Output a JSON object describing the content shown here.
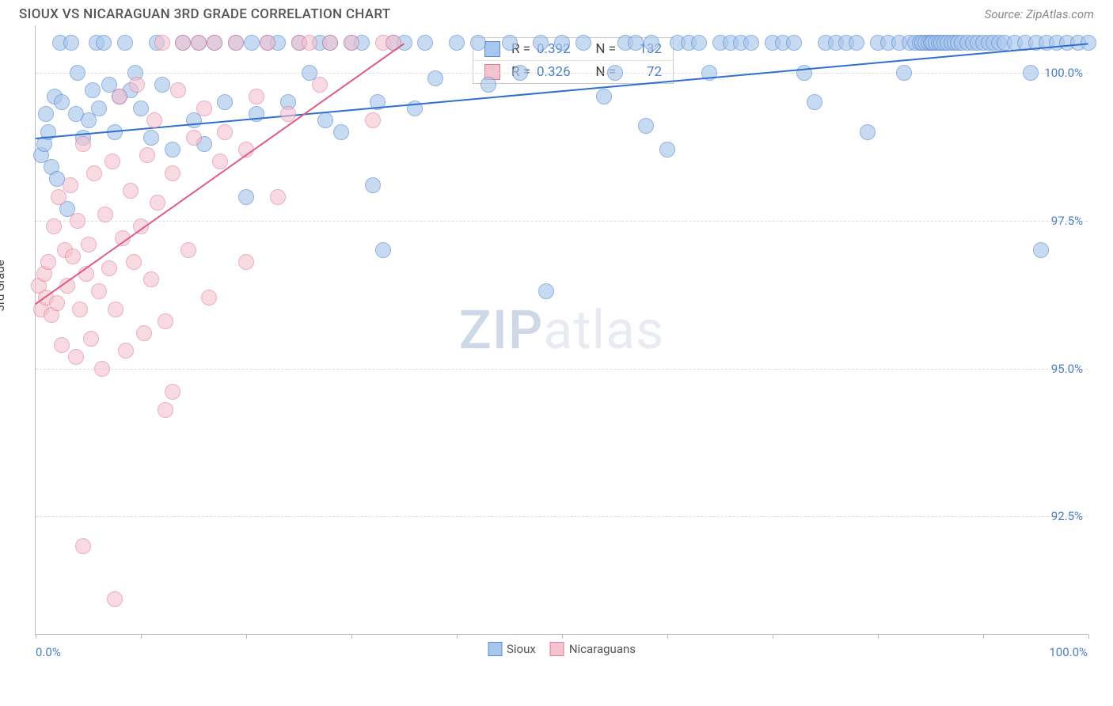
{
  "header": {
    "title": "SIOUX VS NICARAGUAN 3RD GRADE CORRELATION CHART",
    "source": "Source: ZipAtlas.com"
  },
  "chart": {
    "type": "scatter",
    "ylabel": "3rd Grade",
    "xlim": [
      0,
      100
    ],
    "ylim": [
      90.5,
      100.8
    ],
    "y_gridlines": [
      92.5,
      95.0,
      97.5,
      100.0
    ],
    "y_tick_labels": [
      "92.5%",
      "95.0%",
      "97.5%",
      "100.0%"
    ],
    "x_ticks": [
      0,
      10,
      20,
      30,
      40,
      50,
      60,
      70,
      80,
      90,
      100
    ],
    "x_tick_labels_left": "0.0%",
    "x_tick_labels_right": "100.0%",
    "grid_color": "#dddddd",
    "axis_color": "#bbbbbb",
    "background_color": "#ffffff",
    "series": [
      {
        "name": "Sioux",
        "label": "Sioux",
        "point_fill": "#a9c7ec",
        "point_stroke": "#5a8bd0",
        "point_radius": 10,
        "point_opacity": 0.65,
        "trend": {
          "x1": 0,
          "y1": 98.9,
          "x2": 100,
          "y2": 100.5,
          "color": "#2f6fd0",
          "width": 2
        },
        "points": [
          [
            0.5,
            98.6
          ],
          [
            0.8,
            98.8
          ],
          [
            1,
            99.3
          ],
          [
            1.2,
            99.0
          ],
          [
            1.5,
            98.4
          ],
          [
            1.8,
            99.6
          ],
          [
            2,
            98.2
          ],
          [
            2.3,
            100.5
          ],
          [
            2.5,
            99.5
          ],
          [
            3,
            97.7
          ],
          [
            3.4,
            100.5
          ],
          [
            3.8,
            99.3
          ],
          [
            4,
            100.0
          ],
          [
            4.5,
            98.9
          ],
          [
            5,
            99.2
          ],
          [
            5.4,
            99.7
          ],
          [
            5.8,
            100.5
          ],
          [
            6,
            99.4
          ],
          [
            6.5,
            100.5
          ],
          [
            7,
            99.8
          ],
          [
            7.5,
            99.0
          ],
          [
            8,
            99.6
          ],
          [
            8.5,
            100.5
          ],
          [
            9,
            99.7
          ],
          [
            9.5,
            100.0
          ],
          [
            10,
            99.4
          ],
          [
            11,
            98.9
          ],
          [
            11.5,
            100.5
          ],
          [
            12,
            99.8
          ],
          [
            13,
            98.7
          ],
          [
            14,
            100.5
          ],
          [
            15,
            99.2
          ],
          [
            15.5,
            100.5
          ],
          [
            16,
            98.8
          ],
          [
            17,
            100.5
          ],
          [
            18,
            99.5
          ],
          [
            19,
            100.5
          ],
          [
            20,
            97.9
          ],
          [
            20.5,
            100.5
          ],
          [
            21,
            99.3
          ],
          [
            22,
            100.5
          ],
          [
            23,
            100.5
          ],
          [
            24,
            99.5
          ],
          [
            25,
            100.5
          ],
          [
            26,
            100.0
          ],
          [
            27,
            100.5
          ],
          [
            27.5,
            99.2
          ],
          [
            28,
            100.5
          ],
          [
            29,
            99.0
          ],
          [
            30,
            100.5
          ],
          [
            31,
            100.5
          ],
          [
            32,
            98.1
          ],
          [
            32.5,
            99.5
          ],
          [
            33,
            97.0
          ],
          [
            34,
            100.5
          ],
          [
            35,
            100.5
          ],
          [
            36,
            99.4
          ],
          [
            37,
            100.5
          ],
          [
            38,
            99.9
          ],
          [
            40,
            100.5
          ],
          [
            42,
            100.5
          ],
          [
            43,
            99.8
          ],
          [
            45,
            100.5
          ],
          [
            46,
            100.0
          ],
          [
            48,
            100.5
          ],
          [
            48.5,
            96.3
          ],
          [
            50,
            100.5
          ],
          [
            52,
            100.5
          ],
          [
            54,
            99.6
          ],
          [
            56,
            100.5
          ],
          [
            55,
            100.0
          ],
          [
            57,
            100.5
          ],
          [
            58,
            99.1
          ],
          [
            58.5,
            100.5
          ],
          [
            60,
            98.7
          ],
          [
            61,
            100.5
          ],
          [
            62,
            100.5
          ],
          [
            63,
            100.5
          ],
          [
            64,
            100.0
          ],
          [
            65,
            100.5
          ],
          [
            66,
            100.5
          ],
          [
            67,
            100.5
          ],
          [
            68,
            100.5
          ],
          [
            70,
            100.5
          ],
          [
            71,
            100.5
          ],
          [
            72,
            100.5
          ],
          [
            73,
            100.0
          ],
          [
            74,
            99.5
          ],
          [
            75,
            100.5
          ],
          [
            76,
            100.5
          ],
          [
            77,
            100.5
          ],
          [
            78,
            100.5
          ],
          [
            79,
            99.0
          ],
          [
            80,
            100.5
          ],
          [
            81,
            100.5
          ],
          [
            82,
            100.5
          ],
          [
            82.5,
            100.0
          ],
          [
            83,
            100.5
          ],
          [
            83.5,
            100.5
          ],
          [
            84,
            100.5
          ],
          [
            84.2,
            100.5
          ],
          [
            84.5,
            100.5
          ],
          [
            84.8,
            100.5
          ],
          [
            85,
            100.5
          ],
          [
            85.2,
            100.5
          ],
          [
            85.5,
            100.5
          ],
          [
            85.8,
            100.5
          ],
          [
            86,
            100.5
          ],
          [
            86.3,
            100.5
          ],
          [
            86.6,
            100.5
          ],
          [
            87,
            100.5
          ],
          [
            87.3,
            100.5
          ],
          [
            87.6,
            100.5
          ],
          [
            88,
            100.5
          ],
          [
            88.5,
            100.5
          ],
          [
            89,
            100.5
          ],
          [
            89.5,
            100.5
          ],
          [
            90,
            100.5
          ],
          [
            90.5,
            100.5
          ],
          [
            91,
            100.5
          ],
          [
            91.5,
            100.5
          ],
          [
            92,
            100.5
          ],
          [
            93,
            100.5
          ],
          [
            94,
            100.5
          ],
          [
            94.5,
            100.0
          ],
          [
            95,
            100.5
          ],
          [
            95.5,
            97.0
          ],
          [
            96,
            100.5
          ],
          [
            97,
            100.5
          ],
          [
            98,
            100.5
          ],
          [
            99,
            100.5
          ],
          [
            100,
            100.5
          ]
        ]
      },
      {
        "name": "Nicaraguans",
        "label": "Nicaraguans",
        "point_fill": "#f5c2cf",
        "point_stroke": "#e07a98",
        "point_radius": 10,
        "point_opacity": 0.6,
        "trend": {
          "x1": 0,
          "y1": 96.1,
          "x2": 35,
          "y2": 100.5,
          "color": "#e05a85",
          "width": 2
        },
        "points": [
          [
            0.3,
            96.4
          ],
          [
            0.5,
            96.0
          ],
          [
            0.8,
            96.6
          ],
          [
            1,
            96.2
          ],
          [
            1.2,
            96.8
          ],
          [
            1.5,
            95.9
          ],
          [
            1.7,
            97.4
          ],
          [
            2,
            96.1
          ],
          [
            2.2,
            97.9
          ],
          [
            2.5,
            95.4
          ],
          [
            2.8,
            97.0
          ],
          [
            3,
            96.4
          ],
          [
            3.3,
            98.1
          ],
          [
            3.5,
            96.9
          ],
          [
            3.8,
            95.2
          ],
          [
            4,
            97.5
          ],
          [
            4.2,
            96.0
          ],
          [
            4.5,
            98.8
          ],
          [
            4.5,
            92.0
          ],
          [
            4.8,
            96.6
          ],
          [
            5,
            97.1
          ],
          [
            5.3,
            95.5
          ],
          [
            5.6,
            98.3
          ],
          [
            6,
            96.3
          ],
          [
            6.3,
            95.0
          ],
          [
            6.6,
            97.6
          ],
          [
            7,
            96.7
          ],
          [
            7.3,
            98.5
          ],
          [
            7.6,
            96.0
          ],
          [
            8,
            99.6
          ],
          [
            8.3,
            97.2
          ],
          [
            7.5,
            91.1
          ],
          [
            8.6,
            95.3
          ],
          [
            9,
            98.0
          ],
          [
            9.3,
            96.8
          ],
          [
            9.6,
            99.8
          ],
          [
            10,
            97.4
          ],
          [
            10.3,
            95.6
          ],
          [
            10.6,
            98.6
          ],
          [
            11,
            96.5
          ],
          [
            11.3,
            99.2
          ],
          [
            11.6,
            97.8
          ],
          [
            12,
            100.5
          ],
          [
            12.3,
            95.8
          ],
          [
            12.3,
            94.3
          ],
          [
            13,
            98.3
          ],
          [
            13,
            94.6
          ],
          [
            13.5,
            99.7
          ],
          [
            14,
            100.5
          ],
          [
            14.5,
            97.0
          ],
          [
            15,
            98.9
          ],
          [
            15.5,
            100.5
          ],
          [
            16,
            99.4
          ],
          [
            16.5,
            96.2
          ],
          [
            17,
            100.5
          ],
          [
            17.5,
            98.5
          ],
          [
            18,
            99.0
          ],
          [
            19,
            100.5
          ],
          [
            20,
            98.7
          ],
          [
            20,
            96.8
          ],
          [
            21,
            99.6
          ],
          [
            22,
            100.5
          ],
          [
            23,
            97.9
          ],
          [
            24,
            99.3
          ],
          [
            25,
            100.5
          ],
          [
            26,
            100.5
          ],
          [
            27,
            99.8
          ],
          [
            28,
            100.5
          ],
          [
            30,
            100.5
          ],
          [
            32,
            99.2
          ],
          [
            33,
            100.5
          ],
          [
            34,
            100.5
          ]
        ]
      }
    ],
    "stats_box": {
      "left_pct": 41.5,
      "top_y": 100.6,
      "rows": [
        {
          "swatch_fill": "#a9c7ec",
          "swatch_stroke": "#5a8bd0",
          "r_label": "R =",
          "r_val": "0.392",
          "n_label": "N =",
          "n_val": "132"
        },
        {
          "swatch_fill": "#f5c2cf",
          "swatch_stroke": "#e07a98",
          "r_label": "R =",
          "r_val": "0.326",
          "n_label": "N =",
          "n_val": "72"
        }
      ]
    },
    "bottom_legend": [
      {
        "fill": "#a9c7ec",
        "stroke": "#5a8bd0",
        "label": "Sioux"
      },
      {
        "fill": "#f5c2cf",
        "stroke": "#e07a98",
        "label": "Nicaraguans"
      }
    ],
    "watermark": {
      "part1": "ZIP",
      "part2": "atlas"
    }
  }
}
